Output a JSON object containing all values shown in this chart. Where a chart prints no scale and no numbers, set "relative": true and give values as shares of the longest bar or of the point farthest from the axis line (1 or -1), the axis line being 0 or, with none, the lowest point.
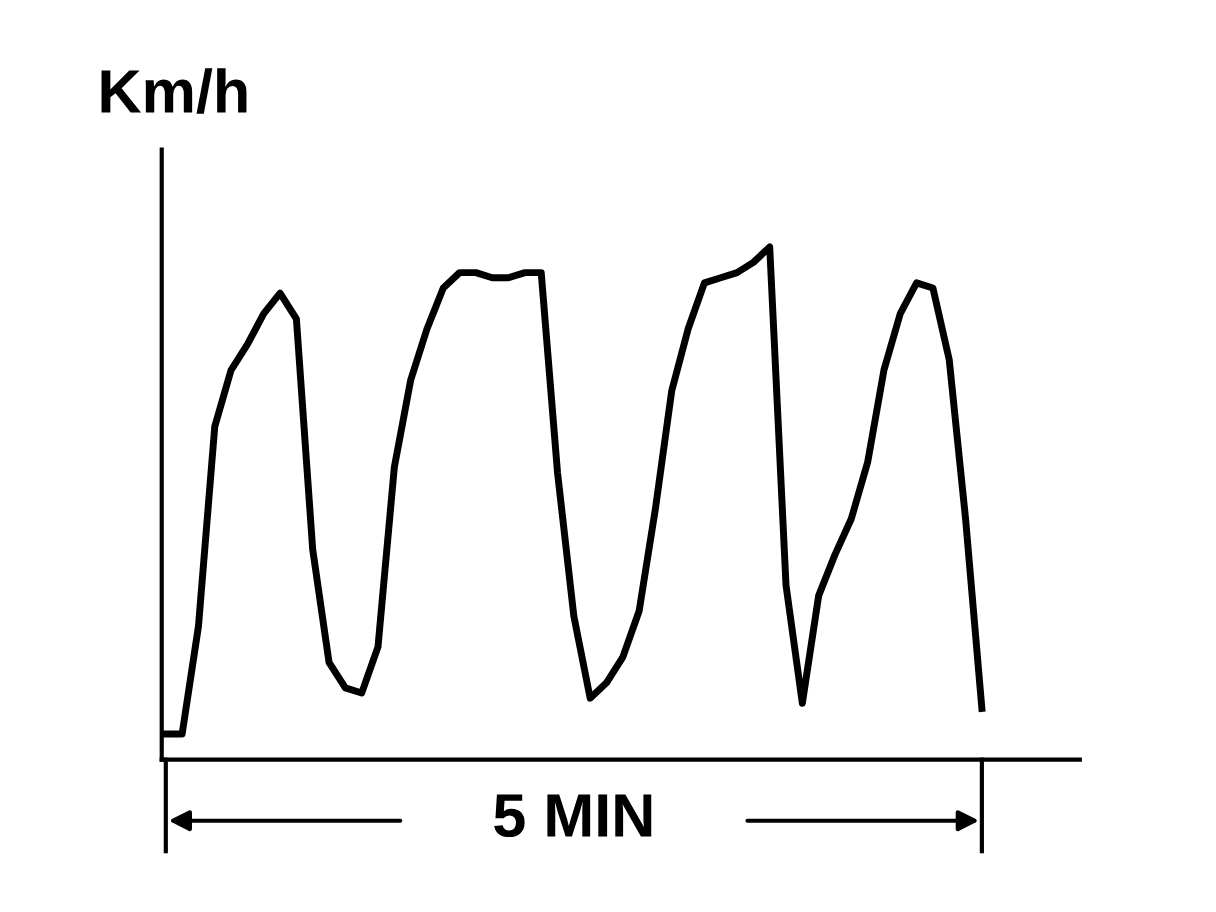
{
  "chart_data": {
    "type": "line",
    "ylabel": "Km/h",
    "relative": true,
    "marker": "none",
    "line_style": "solid",
    "categories": [
      null,
      null,
      null,
      null,
      null,
      null,
      null,
      null,
      null,
      null,
      null,
      null,
      null,
      null,
      null,
      null,
      null,
      null,
      null,
      null,
      null,
      null,
      null,
      null,
      null,
      null,
      null,
      null,
      null,
      null,
      null,
      null,
      null,
      null,
      null,
      null,
      null,
      null,
      null,
      null,
      null,
      null,
      null,
      null,
      null,
      null,
      null,
      null,
      null,
      null,
      null
    ],
    "series": [
      {
        "color": "#000000",
        "values": [
          0.05,
          0.05,
          0.26,
          0.65,
          0.76,
          0.81,
          0.87,
          0.91,
          0.86,
          0.41,
          0.19,
          0.14,
          0.13,
          0.22,
          0.57,
          0.74,
          0.84,
          0.92,
          0.95,
          0.95,
          0.94,
          0.94,
          0.95,
          0.95,
          0.56,
          0.28,
          0.12,
          0.15,
          0.2,
          0.29,
          0.49,
          0.72,
          0.84,
          0.93,
          0.94,
          0.95,
          0.97,
          1.0,
          0.34,
          0.11,
          0.32,
          0.4,
          0.47,
          0.58,
          0.76,
          0.87,
          0.93,
          0.92,
          0.78,
          0.47,
          0.1
        ]
      }
    ],
    "annotations": [
      "5 MIN"
    ]
  }
}
